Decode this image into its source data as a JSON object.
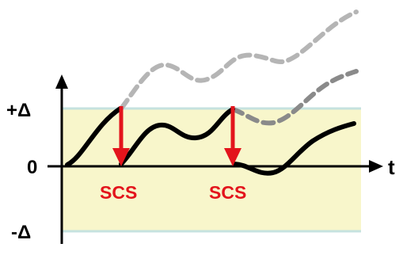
{
  "labels": {
    "plus_delta": "+Δ",
    "zero": "0",
    "minus_delta": "-Δ",
    "t_axis": "t",
    "scs_1": "SCS",
    "scs_2": "SCS"
  },
  "colors": {
    "band": "#f8f6cb",
    "band_border": "#c6e2df",
    "signal": "#000000",
    "dashed_light": "#b5b5b5",
    "dashed_dark": "#8a8a8a",
    "scs_arrow": "#e3141c",
    "scs_text": "#e3141c"
  }
}
